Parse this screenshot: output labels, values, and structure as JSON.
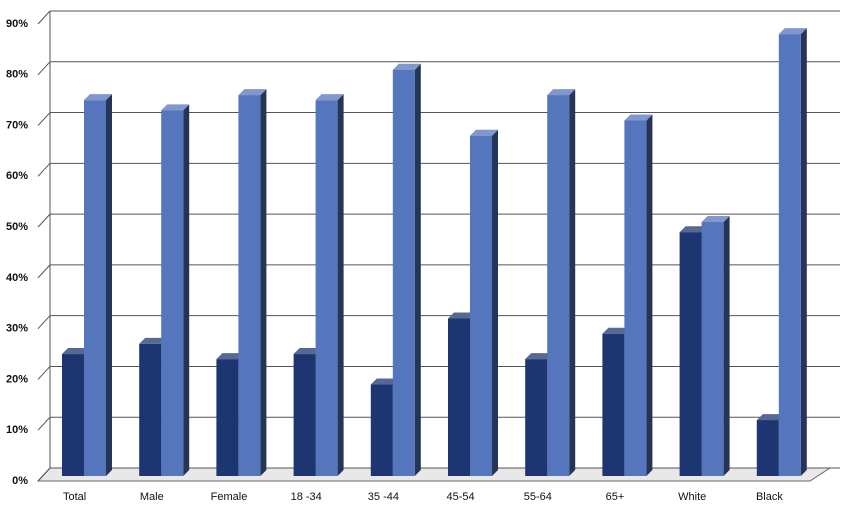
{
  "chart_data": {
    "type": "bar3d",
    "categories": [
      "Total",
      "Male",
      "Female",
      "18 -34",
      "35 -44",
      "45-54",
      "55-64",
      "65+",
      "White",
      "Black"
    ],
    "series": [
      {
        "color": "#1d3570",
        "values": [
          25,
          27,
          24,
          25,
          19,
          32,
          24,
          29,
          49,
          12
        ]
      },
      {
        "color": "#5575bd",
        "values": [
          75,
          73,
          76,
          75,
          81,
          68,
          76,
          71,
          51,
          88
        ]
      }
    ],
    "ylim": [
      0,
      90
    ],
    "yticks": [
      {
        "value": 0,
        "label": "0%"
      },
      {
        "value": 10,
        "label": "10%"
      },
      {
        "value": 20,
        "label": "20%"
      },
      {
        "value": 30,
        "label": "30%"
      },
      {
        "value": 40,
        "label": "40%"
      },
      {
        "value": 50,
        "label": "50%"
      },
      {
        "value": 60,
        "label": "60%"
      },
      {
        "value": 70,
        "label": "70%"
      },
      {
        "value": 80,
        "label": "80%"
      },
      {
        "value": 90,
        "label": "90%"
      }
    ],
    "grid": true
  }
}
